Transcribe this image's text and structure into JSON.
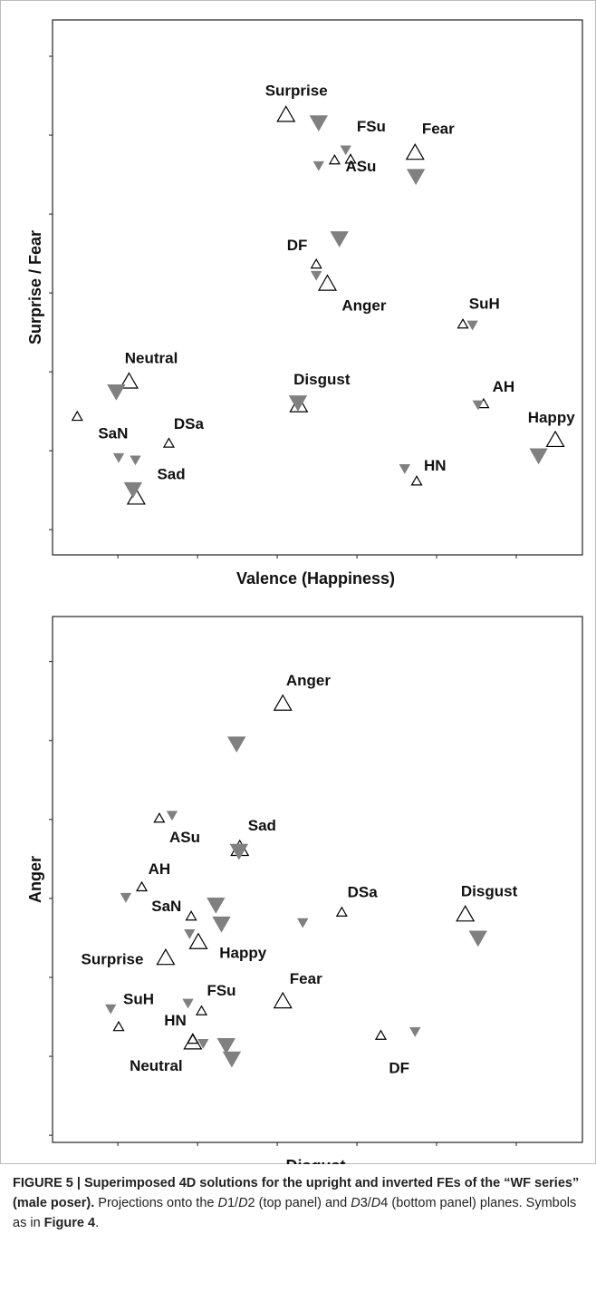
{
  "chart_data": [
    {
      "type": "scatter",
      "xlabel": "Valence (Happiness)",
      "ylabel": "Surprise / Fear",
      "xlim": [
        0.18,
        6.83
      ],
      "ylim": [
        -0.32,
        6.46
      ],
      "xticks": [
        1,
        2,
        3,
        4,
        5,
        6
      ],
      "yticks": [
        0,
        1,
        2,
        3,
        4,
        5,
        6
      ],
      "series": [
        {
          "marker": "triangle-up",
          "size": "large",
          "filled": false,
          "color": "#000000",
          "x": [
            3.11,
            4.73,
            3.63,
            1.14,
            3.27,
            6.49,
            1.23
          ],
          "values": [
            5.25,
            4.77,
            3.11,
            1.87,
            1.57,
            1.13,
            0.4
          ]
        },
        {
          "marker": "triangle-up",
          "size": "small",
          "filled": false,
          "color": "#000000",
          "x": [
            0.49,
            1.64,
            3.72,
            3.92,
            3.49,
            5.33,
            5.59,
            4.75
          ],
          "values": [
            1.43,
            1.09,
            4.68,
            4.69,
            3.36,
            2.6,
            1.59,
            0.61
          ]
        },
        {
          "marker": "triangle-down",
          "size": "large",
          "filled": true,
          "color": "#808080",
          "x": [
            3.52,
            4.74,
            3.78,
            0.98,
            3.26,
            6.28,
            1.19
          ],
          "values": [
            5.17,
            4.49,
            3.7,
            1.76,
            1.62,
            0.95,
            0.52
          ]
        },
        {
          "marker": "triangle-down",
          "size": "small",
          "filled": true,
          "color": "#808080",
          "x": [
            3.86,
            3.52,
            3.49,
            5.45,
            5.52,
            1.01,
            1.22,
            4.6
          ],
          "values": [
            4.82,
            4.62,
            3.23,
            2.6,
            1.59,
            0.92,
            0.89,
            0.78
          ]
        }
      ],
      "annotations": [
        {
          "text": "Surprise",
          "x": 3.24,
          "y": 5.55
        },
        {
          "text": "FSu",
          "x": 4.18,
          "y": 5.1
        },
        {
          "text": "Fear",
          "x": 5.02,
          "y": 5.07
        },
        {
          "text": "ASu",
          "x": 4.05,
          "y": 4.59
        },
        {
          "text": "DF",
          "x": 3.25,
          "y": 3.59
        },
        {
          "text": "Anger",
          "x": 4.09,
          "y": 2.83
        },
        {
          "text": "Neutral",
          "x": 1.42,
          "y": 2.16
        },
        {
          "text": "SuH",
          "x": 5.6,
          "y": 2.85
        },
        {
          "text": "Disgust",
          "x": 3.56,
          "y": 1.89
        },
        {
          "text": "AH",
          "x": 5.84,
          "y": 1.8
        },
        {
          "text": "SaN",
          "x": 0.94,
          "y": 1.21
        },
        {
          "text": "DSa",
          "x": 1.89,
          "y": 1.33
        },
        {
          "text": "Happy",
          "x": 6.44,
          "y": 1.41
        },
        {
          "text": "HN",
          "x": 4.98,
          "y": 0.8
        },
        {
          "text": "Sad",
          "x": 1.67,
          "y": 0.69
        }
      ]
    },
    {
      "type": "scatter",
      "xlabel": "Disgust",
      "ylabel": "Anger",
      "xlim": [
        0.18,
        6.83
      ],
      "ylim": [
        -0.09,
        6.57
      ],
      "xticks": [
        1,
        2,
        3,
        4,
        5,
        6
      ],
      "yticks": [
        0,
        1,
        2,
        3,
        4,
        5,
        6
      ],
      "series": [
        {
          "marker": "triangle-up",
          "size": "large",
          "filled": false,
          "color": "#000000",
          "x": [
            3.07,
            2.53,
            5.36,
            2.01,
            1.6,
            3.07,
            1.94
          ],
          "values": [
            5.46,
            3.62,
            2.79,
            2.44,
            2.24,
            1.69,
            1.17
          ]
        },
        {
          "marker": "triangle-up",
          "size": "small",
          "filled": false,
          "color": "#000000",
          "x": [
            1.52,
            1.3,
            1.92,
            3.81,
            2.05,
            1.01,
            4.3,
            1.94
          ],
          "values": [
            4.01,
            3.14,
            2.77,
            2.82,
            1.57,
            1.37,
            1.26,
            1.21
          ]
        },
        {
          "marker": "triangle-down",
          "size": "large",
          "filled": true,
          "color": "#808080",
          "x": [
            2.49,
            2.52,
            2.23,
            2.3,
            5.52,
            2.36,
            2.43
          ],
          "values": [
            4.97,
            3.61,
            2.93,
            2.69,
            2.51,
            1.15,
            0.98
          ]
        },
        {
          "marker": "triangle-down",
          "size": "small",
          "filled": true,
          "color": "#808080",
          "x": [
            1.68,
            1.1,
            3.32,
            1.9,
            1.88,
            0.91,
            4.73,
            2.07
          ],
          "values": [
            4.06,
            3.02,
            2.7,
            2.56,
            1.68,
            1.61,
            1.32,
            1.17
          ]
        }
      ],
      "annotations": [
        {
          "text": "Anger",
          "x": 3.39,
          "y": 5.75
        },
        {
          "text": "ASu",
          "x": 1.84,
          "y": 3.76
        },
        {
          "text": "Sad",
          "x": 2.81,
          "y": 3.91
        },
        {
          "text": "AH",
          "x": 1.52,
          "y": 3.36
        },
        {
          "text": "Disgust",
          "x": 5.66,
          "y": 3.08
        },
        {
          "text": "SaN",
          "x": 1.61,
          "y": 2.89
        },
        {
          "text": "DSa",
          "x": 4.07,
          "y": 3.07
        },
        {
          "text": "Happy",
          "x": 2.57,
          "y": 2.3
        },
        {
          "text": "Surprise",
          "x": 0.93,
          "y": 2.22
        },
        {
          "text": "Fear",
          "x": 3.36,
          "y": 1.97
        },
        {
          "text": "FSu",
          "x": 2.3,
          "y": 1.82
        },
        {
          "text": "SuH",
          "x": 1.26,
          "y": 1.71
        },
        {
          "text": "HN",
          "x": 1.72,
          "y": 1.44
        },
        {
          "text": "Neutral",
          "x": 1.48,
          "y": 0.87
        },
        {
          "text": "DF",
          "x": 4.53,
          "y": 0.84
        }
      ]
    }
  ],
  "caption": [
    {
      "text": "FIGURE 5 | Superimposed 4D solutions for the upright and inverted FEs of the “WF series” (male poser).",
      "style": "bold"
    },
    {
      "text": " Projections onto the ",
      "style": "normal"
    },
    {
      "text": "D",
      "style": "italic"
    },
    {
      "text": "1/",
      "style": "normal"
    },
    {
      "text": "D",
      "style": "italic"
    },
    {
      "text": "2 (top panel) and ",
      "style": "normal"
    },
    {
      "text": "D",
      "style": "italic"
    },
    {
      "text": "3/",
      "style": "normal"
    },
    {
      "text": "D",
      "style": "italic"
    },
    {
      "text": "4 (bottom panel) planes. Symbols as in ",
      "style": "normal"
    },
    {
      "text": "Figure 4",
      "style": "bold"
    },
    {
      "text": ".",
      "style": "normal"
    }
  ]
}
